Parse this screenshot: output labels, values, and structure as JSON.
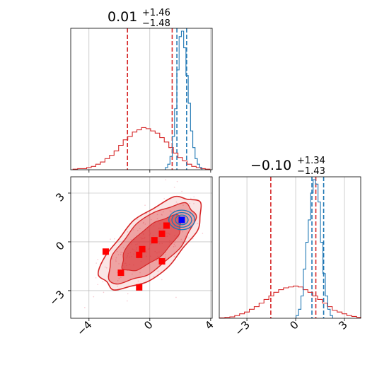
{
  "chart_data": {
    "type": "corner",
    "parameters": [
      "p1",
      "p2"
    ],
    "titles": {
      "p1": {
        "median": "0.01",
        "plus": "+1.46",
        "minus": "−1.48"
      },
      "p2": {
        "median": "−0.10",
        "plus": "+1.34",
        "minus": "−1.43"
      }
    },
    "axes": {
      "p1": {
        "range": [
          -5.2,
          4.1
        ],
        "ticks": [
          -4,
          0,
          4
        ],
        "tick_labels": [
          "−4",
          "0",
          "4"
        ]
      },
      "p2": {
        "range": [
          -4.7,
          4.0
        ],
        "ticks": [
          -3,
          0,
          3
        ],
        "tick_labels": [
          "−3",
          "0",
          "3"
        ]
      }
    },
    "grid": true,
    "colors": {
      "red": "#d62728",
      "blue": "#1f77b4",
      "marker_red": "#ff0000",
      "marker_blue": "#0000ff"
    },
    "series": [
      {
        "name": "",
        "color": "#d62728",
        "p1_hist": {
          "x": [
            -4.9,
            -4.6,
            -4.3,
            -4.0,
            -3.7,
            -3.4,
            -3.1,
            -2.8,
            -2.5,
            -2.2,
            -1.9,
            -1.6,
            -1.3,
            -1.0,
            -0.7,
            -0.4,
            -0.1,
            0.2,
            0.5,
            0.8,
            1.1,
            1.4,
            1.7,
            2.0,
            2.3,
            2.6,
            2.9,
            3.2,
            3.5,
            3.8
          ],
          "density": [
            0.005,
            0.01,
            0.01,
            0.02,
            0.03,
            0.05,
            0.07,
            0.1,
            0.13,
            0.17,
            0.22,
            0.27,
            0.3,
            0.34,
            0.36,
            0.38,
            0.37,
            0.35,
            0.33,
            0.29,
            0.25,
            0.2,
            0.15,
            0.11,
            0.08,
            0.05,
            0.03,
            0.02,
            0.01,
            0.005
          ]
        },
        "p1_quantiles": [
          -1.47,
          0.01,
          1.47
        ],
        "p2_hist": {
          "x": [
            -4.5,
            -4.2,
            -3.9,
            -3.6,
            -3.3,
            -3.0,
            -2.7,
            -2.4,
            -2.1,
            -1.8,
            -1.5,
            -1.2,
            -0.9,
            -0.6,
            -0.3,
            0.0,
            0.3,
            0.6,
            0.9,
            1.2,
            1.5,
            1.8,
            2.1,
            2.4,
            2.7,
            3.0,
            3.3,
            3.6,
            3.9
          ],
          "density": [
            0.005,
            0.01,
            0.015,
            0.03,
            0.05,
            0.07,
            0.1,
            0.13,
            0.17,
            0.21,
            0.25,
            0.29,
            0.32,
            0.34,
            0.35,
            0.36,
            0.35,
            0.32,
            0.29,
            0.25,
            0.21,
            0.17,
            0.13,
            0.09,
            0.07,
            0.05,
            0.03,
            0.02,
            0.01
          ]
        },
        "p2_quantiles": [
          -1.53,
          -0.1,
          1.24
        ],
        "points": [
          {
            "p1": -2.9,
            "p2": -0.6
          },
          {
            "p1": -1.9,
            "p2": -1.9
          },
          {
            "p1": -0.7,
            "p2": -0.8
          },
          {
            "p1": -0.5,
            "p2": -0.45
          },
          {
            "p1": -0.7,
            "p2": -2.8
          },
          {
            "p1": 0.3,
            "p2": 0.1
          },
          {
            "p1": 0.8,
            "p2": 0.5
          },
          {
            "p1": 0.8,
            "p2": -1.2
          },
          {
            "p1": 1.1,
            "p2": 1.0
          }
        ]
      },
      {
        "name": "",
        "color": "#1f77b4",
        "p1_hist": {
          "x": [
            1.1,
            1.25,
            1.4,
            1.55,
            1.7,
            1.85,
            2.0,
            2.15,
            2.3,
            2.45,
            2.6,
            2.75,
            2.9,
            3.05,
            3.2,
            3.35
          ],
          "density": [
            0.02,
            0.05,
            0.12,
            0.3,
            0.55,
            0.9,
            1.2,
            1.25,
            1.1,
            0.85,
            0.6,
            0.35,
            0.2,
            0.1,
            0.05,
            0.02
          ]
        },
        "p1_quantiles": [
          1.78,
          2.1,
          2.42
        ],
        "p2_hist": {
          "x": [
            0.1,
            0.25,
            0.4,
            0.55,
            0.7,
            0.85,
            1.0,
            1.15,
            1.3,
            1.45,
            1.6,
            1.75,
            1.9,
            2.05,
            2.2
          ],
          "density": [
            0.03,
            0.1,
            0.25,
            0.55,
            0.85,
            1.1,
            1.4,
            1.55,
            1.5,
            1.3,
            0.85,
            0.5,
            0.25,
            0.1,
            0.03
          ]
        },
        "p2_quantiles": [
          1.0,
          1.3,
          1.72
        ],
        "points": [
          {
            "p1": 2.1,
            "p2": 1.35
          }
        ]
      }
    ]
  }
}
